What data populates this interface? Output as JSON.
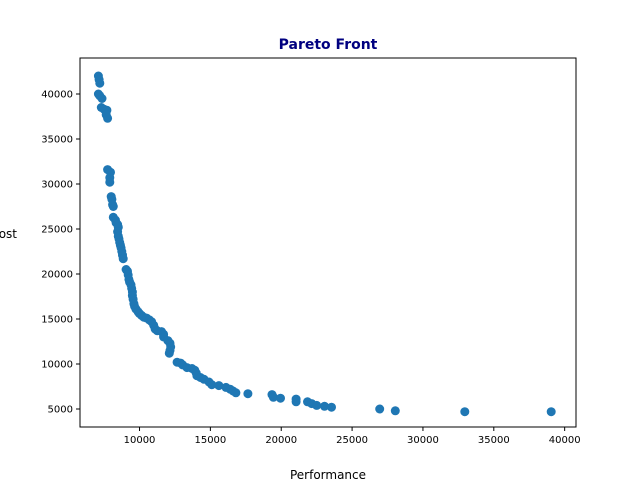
{
  "chart_data": {
    "type": "scatter",
    "title": "Pareto Front",
    "title_color": "#000080",
    "xlabel": "Performance",
    "ylabel": "Cost",
    "xlim": [
      5800,
      40800
    ],
    "ylim": [
      3000,
      44000
    ],
    "xticks": [
      10000,
      15000,
      20000,
      25000,
      30000,
      35000,
      40000
    ],
    "yticks": [
      5000,
      10000,
      15000,
      20000,
      25000,
      30000,
      35000,
      40000
    ],
    "grid": false,
    "marker_color": "#1f77b4",
    "series": [
      {
        "points": [
          [
            7100,
            42000
          ],
          [
            7150,
            41600
          ],
          [
            7200,
            41200
          ],
          [
            7100,
            40000
          ],
          [
            7200,
            39800
          ],
          [
            7350,
            39500
          ],
          [
            7300,
            38500
          ],
          [
            7500,
            38300
          ],
          [
            7700,
            38200
          ],
          [
            7650,
            37700
          ],
          [
            7750,
            37300
          ],
          [
            7750,
            31600
          ],
          [
            7950,
            31300
          ],
          [
            7900,
            30700
          ],
          [
            7900,
            30200
          ],
          [
            8000,
            28600
          ],
          [
            8050,
            28300
          ],
          [
            8100,
            27700
          ],
          [
            8150,
            27500
          ],
          [
            8150,
            26300
          ],
          [
            8300,
            26000
          ],
          [
            8350,
            25700
          ],
          [
            8450,
            25500
          ],
          [
            8500,
            25200
          ],
          [
            8450,
            24700
          ],
          [
            8500,
            24200
          ],
          [
            8550,
            23900
          ],
          [
            8600,
            23500
          ],
          [
            8650,
            23200
          ],
          [
            8700,
            22900
          ],
          [
            8750,
            22500
          ],
          [
            8800,
            22100
          ],
          [
            8850,
            21700
          ],
          [
            9050,
            20500
          ],
          [
            9150,
            20300
          ],
          [
            9200,
            19900
          ],
          [
            9250,
            19400
          ],
          [
            9300,
            19100
          ],
          [
            9400,
            18800
          ],
          [
            9450,
            18400
          ],
          [
            9500,
            18000
          ],
          [
            9500,
            17600
          ],
          [
            9550,
            17200
          ],
          [
            9600,
            16700
          ],
          [
            9650,
            16400
          ],
          [
            9750,
            16100
          ],
          [
            9900,
            15800
          ],
          [
            10000,
            15600
          ],
          [
            10150,
            15400
          ],
          [
            10300,
            15200
          ],
          [
            10500,
            15100
          ],
          [
            10700,
            14900
          ],
          [
            10850,
            14700
          ],
          [
            11000,
            14300
          ],
          [
            11100,
            13900
          ],
          [
            11250,
            13700
          ],
          [
            11550,
            13600
          ],
          [
            11700,
            13300
          ],
          [
            11700,
            13000
          ],
          [
            12000,
            12600
          ],
          [
            12150,
            12300
          ],
          [
            12200,
            11900
          ],
          [
            12150,
            11500
          ],
          [
            12100,
            11200
          ],
          [
            12650,
            10200
          ],
          [
            12900,
            10100
          ],
          [
            13050,
            9900
          ],
          [
            13350,
            9600
          ],
          [
            13700,
            9500
          ],
          [
            13900,
            9300
          ],
          [
            14000,
            9000
          ],
          [
            14050,
            8700
          ],
          [
            14300,
            8500
          ],
          [
            14550,
            8300
          ],
          [
            14900,
            8000
          ],
          [
            15100,
            7700
          ],
          [
            15600,
            7600
          ],
          [
            16100,
            7400
          ],
          [
            16400,
            7200
          ],
          [
            16600,
            7000
          ],
          [
            16800,
            6800
          ],
          [
            17650,
            6700
          ],
          [
            19350,
            6600
          ],
          [
            19450,
            6300
          ],
          [
            19950,
            6200
          ],
          [
            21050,
            6100
          ],
          [
            21050,
            5800
          ],
          [
            21850,
            5800
          ],
          [
            22150,
            5600
          ],
          [
            22500,
            5400
          ],
          [
            23050,
            5300
          ],
          [
            23550,
            5200
          ],
          [
            26950,
            5000
          ],
          [
            28050,
            4800
          ],
          [
            32950,
            4700
          ],
          [
            39050,
            4700
          ]
        ]
      }
    ]
  }
}
